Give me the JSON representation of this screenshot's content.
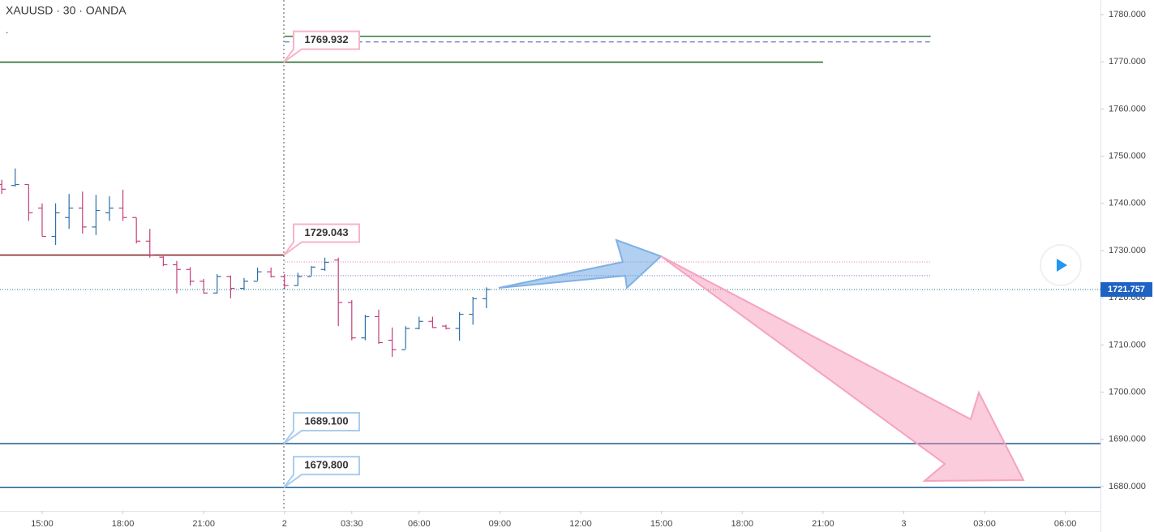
{
  "chart_data": {
    "type": "ohlc",
    "title": "XAUUSD · 30 · OANDA",
    "subtitle": ".",
    "x": [
      -3,
      -2,
      -1,
      0,
      1,
      2,
      3,
      4,
      5,
      6,
      7,
      8,
      9,
      10,
      11,
      12,
      13,
      14,
      15,
      16,
      17,
      18,
      19,
      20,
      21,
      22,
      23,
      24,
      25,
      26,
      27,
      28,
      29,
      30,
      31,
      32,
      33
    ],
    "open": [
      1744,
      1743.8,
      1744,
      1739,
      1733,
      1737,
      1739,
      1735,
      1738,
      1739,
      1737,
      1732,
      1728.6,
      1727,
      1726,
      1723.5,
      1721,
      1724.5,
      1722,
      1723.5,
      1725.5,
      1724.5,
      1722.6,
      1724.5,
      1726,
      1728,
      1719,
      1711.5,
      1716,
      1711,
      1709,
      1713.5,
      1715,
      1714,
      1713.5,
      1716.5,
      1719.8
    ],
    "high": [
      1745,
      1747.4,
      1744,
      1740,
      1740,
      1742,
      1742.5,
      1741.8,
      1741.5,
      1742.9,
      1737,
      1734.6,
      1728.8,
      1727.8,
      1726.5,
      1724,
      1725,
      1724.7,
      1724.2,
      1726.4,
      1726.4,
      1725,
      1725.3,
      1726.7,
      1728.5,
      1728.5,
      1719.5,
      1716.4,
      1717.5,
      1713.7,
      1714,
      1716,
      1716,
      1714.3,
      1717,
      1720.2,
      1722.2
    ],
    "low": [
      1742,
      1743.6,
      1736.3,
      1733,
      1731.2,
      1734.6,
      1733.6,
      1733.3,
      1736.3,
      1736.3,
      1731.5,
      1728.5,
      1726.7,
      1720.9,
      1722.6,
      1720.9,
      1720.9,
      1719.9,
      1721.6,
      1723.6,
      1724.3,
      1721.9,
      1722.6,
      1724.7,
      1725.7,
      1714,
      1711,
      1711,
      1710.2,
      1707.5,
      1709.2,
      1713.3,
      1713.6,
      1713.3,
      1710.9,
      1714.3,
      1717.8
    ],
    "close": [
      1743,
      1744,
      1738,
      1733,
      1738,
      1739,
      1735,
      1738.5,
      1739,
      1737,
      1732,
      1729,
      1727,
      1726,
      1723.5,
      1721,
      1724.5,
      1722,
      1723.5,
      1725.5,
      1724.5,
      1722.6,
      1724.5,
      1726.5,
      1727.5,
      1719,
      1711.5,
      1716,
      1710.5,
      1709,
      1713.5,
      1715,
      1713.7,
      1713.5,
      1716.5,
      1719.8,
      1721.757
    ],
    "up_color": "#2f6fa8",
    "down_color": "#c2407a",
    "last_color": "#1f7a8c",
    "last_label_color": "#1e63c4",
    "xlim": [
      -3.13,
      78.61
    ],
    "ylim": [
      1674.84,
      1783.09
    ],
    "xticks": [
      {
        "value": 0,
        "label": "15:00"
      },
      {
        "value": 6,
        "label": "18:00"
      },
      {
        "value": 12,
        "label": "21:00"
      },
      {
        "value": 18,
        "label": "2"
      },
      {
        "value": 23,
        "label": "03:30"
      },
      {
        "value": 28,
        "label": "06:00"
      },
      {
        "value": 34,
        "label": "09:00"
      },
      {
        "value": 40,
        "label": "12:00"
      },
      {
        "value": 46,
        "label": "15:00"
      },
      {
        "value": 52,
        "label": "18:00"
      },
      {
        "value": 58,
        "label": "21:00"
      },
      {
        "value": 64,
        "label": "3"
      },
      {
        "value": 70,
        "label": "03:00"
      },
      {
        "value": 76,
        "label": "06:00"
      }
    ],
    "yticks": [
      {
        "value": 1780,
        "label": "1780.000"
      },
      {
        "value": 1770,
        "label": "1770.000"
      },
      {
        "value": 1760,
        "label": "1760.000"
      },
      {
        "value": 1750,
        "label": "1750.000"
      },
      {
        "value": 1740,
        "label": "1740.000"
      },
      {
        "value": 1730,
        "label": "1730.000"
      },
      {
        "value": 1720,
        "label": "1720.000"
      },
      {
        "value": 1710,
        "label": "1710.000"
      },
      {
        "value": 1700,
        "label": "1700.000"
      },
      {
        "value": 1690,
        "label": "1690.000"
      },
      {
        "value": 1680,
        "label": "1680.000"
      }
    ],
    "levels": [
      {
        "value": 1775.4,
        "color": "#2e7d32",
        "style": "solid",
        "from": 18,
        "to": 66
      },
      {
        "value": 1774.2,
        "color": "#3f51b5",
        "style": "dashed",
        "from": 18,
        "to": 66
      },
      {
        "value": 1769.932,
        "color": "#1b5e20",
        "style": "solid",
        "to": 58,
        "callout": "pink"
      },
      {
        "value": 1729.043,
        "color": "#7b1a1a",
        "style": "solid",
        "to": 18,
        "callout": "pink"
      },
      {
        "value": 1727.6,
        "color": "#e879a8",
        "style": "dotted",
        "from": 18,
        "to": 66
      },
      {
        "value": 1724.7,
        "color": "#5c6bc0",
        "style": "dotted",
        "from": 18,
        "to": 66
      },
      {
        "value": 1689.1,
        "value_label": "1689.100",
        "color": "#1d5d8c",
        "style": "solid",
        "callout": "blue"
      },
      {
        "value": 1679.8,
        "value_label": "1679.800",
        "color": "#1d5d8c",
        "style": "solid",
        "callout": "blue"
      }
    ]
  }
}
